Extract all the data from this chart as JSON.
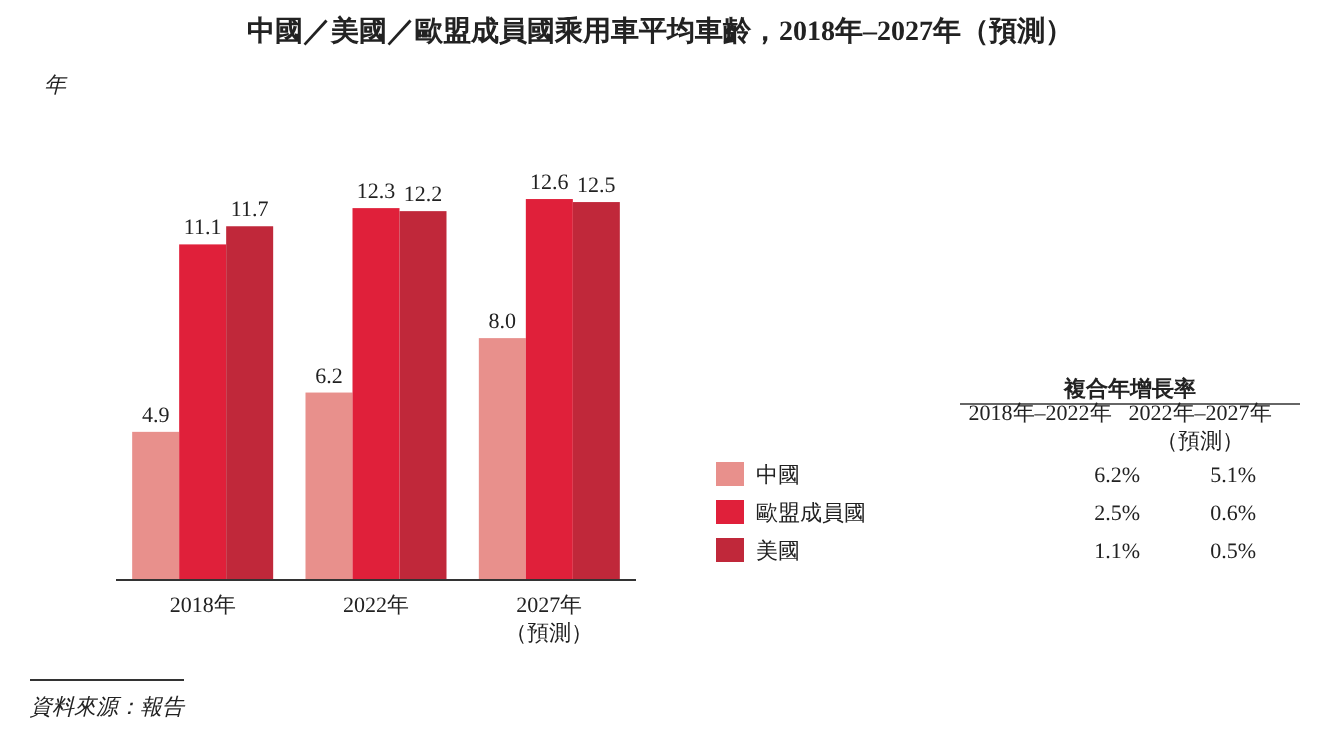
{
  "chart_data": {
    "type": "bar",
    "title": "中國／美國／歐盟成員國乘用車平均車齡，2018年–2027年（預測）",
    "categories": [
      "2018年",
      "2022年",
      "2027年（預測）"
    ],
    "series": [
      {
        "name": "中國",
        "color": "#e8908c",
        "values": [
          4.9,
          6.2,
          8.0
        ],
        "value_labels": [
          "4.9",
          "6.2",
          "8.0"
        ]
      },
      {
        "name": "歐盟成員國",
        "color": "#e0203a",
        "values": [
          11.1,
          12.3,
          12.6
        ],
        "value_labels": [
          "11.1",
          "12.3",
          "12.6"
        ]
      },
      {
        "name": "美國",
        "color": "#c0283a",
        "values": [
          11.7,
          12.2,
          12.5
        ],
        "value_labels": [
          "11.7",
          "12.2",
          "12.5"
        ]
      }
    ],
    "legend": "right",
    "annotations": [
      "複合年增長率",
      "2018年–2022年",
      "2022年–2027年（預測）",
      "6.2%",
      "5.1%",
      "2.5%",
      "0.6%",
      "1.1%",
      "0.5%",
      "資料來源：報告",
      "年"
    ]
  }
}
